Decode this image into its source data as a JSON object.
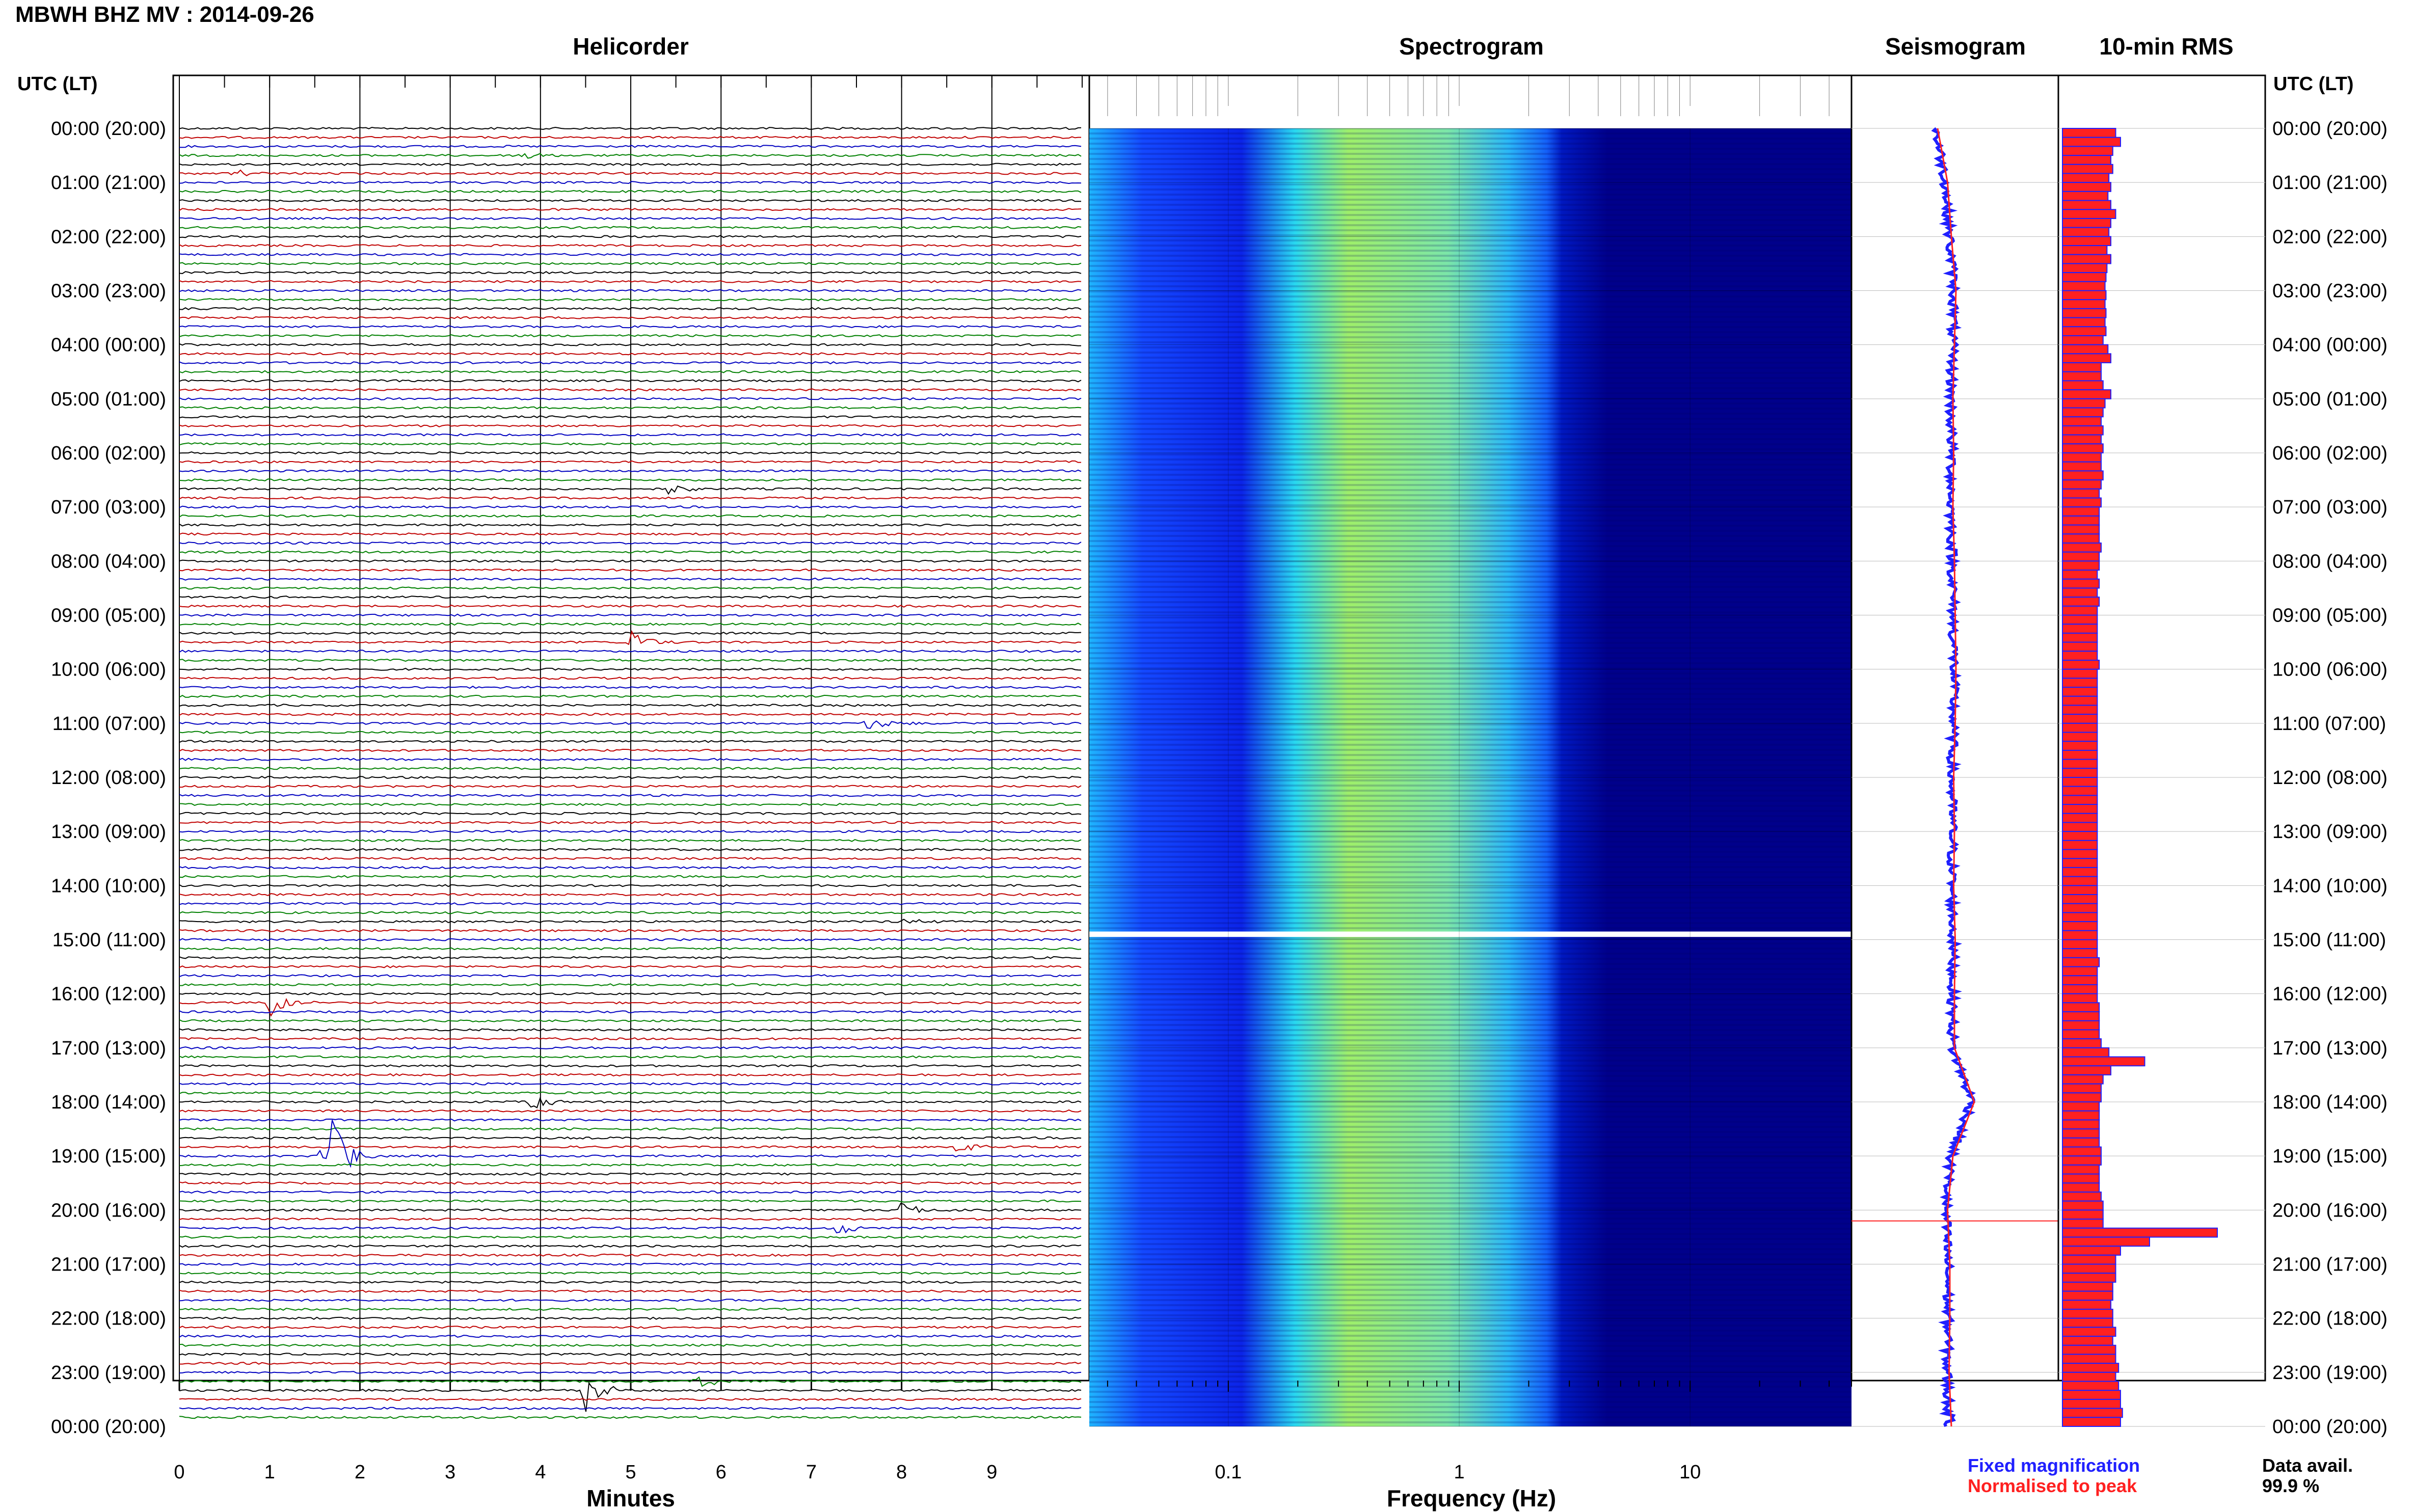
{
  "header": {
    "title": "MBWH BHZ MV : 2014-09-26",
    "utc_label_left": "UTC (LT)",
    "utc_label_right": "UTC (LT)"
  },
  "panels": {
    "helicorder": "Helicorder",
    "spectrogram": "Spectrogram",
    "seismogram": "Seismogram",
    "rms": "10-min RMS"
  },
  "time_labels": [
    "00:00 (20:00)",
    "01:00 (21:00)",
    "02:00 (22:00)",
    "03:00 (23:00)",
    "04:00 (00:00)",
    "05:00 (01:00)",
    "06:00 (02:00)",
    "07:00 (03:00)",
    "08:00 (04:00)",
    "09:00 (05:00)",
    "10:00 (06:00)",
    "11:00 (07:00)",
    "12:00 (08:00)",
    "13:00 (09:00)",
    "14:00 (10:00)",
    "15:00 (11:00)",
    "16:00 (12:00)",
    "17:00 (13:00)",
    "18:00 (14:00)",
    "19:00 (15:00)",
    "20:00 (16:00)",
    "21:00 (17:00)",
    "22:00 (18:00)",
    "23:00 (19:00)",
    "00:00 (20:00)"
  ],
  "legend": {
    "fixed": "Fixed magnification",
    "normalised": "Normalised to peak"
  },
  "availability": {
    "label": "Data avail.",
    "value": "99.9 %"
  },
  "colors": {
    "trace_cycle": [
      "#000000",
      "#c00000",
      "#0000c0",
      "#008000"
    ],
    "spectrogram_background": "#00008b",
    "seismogram_fixed": "#2020ff",
    "seismogram_normalised": "#ff2020",
    "rms_fill": "#ff2020",
    "rms_edge": "#2020ff"
  },
  "chart_data": [
    {
      "type": "line",
      "name": "helicorder",
      "title": "Helicorder",
      "xlabel": "Minutes",
      "x_ticks": [
        0,
        1,
        2,
        3,
        4,
        5,
        6,
        7,
        8,
        9
      ],
      "xlim": [
        0,
        10
      ],
      "rows": 144,
      "row_minutes": 10,
      "events": [
        {
          "row": 3,
          "minute": 3.8,
          "amp": 0.3
        },
        {
          "row": 5,
          "minute": 0.6,
          "amp": 0.2
        },
        {
          "row": 40,
          "minute": 5.4,
          "amp": 0.4
        },
        {
          "row": 57,
          "minute": 5.0,
          "amp": 0.7
        },
        {
          "row": 66,
          "minute": 7.6,
          "amp": 0.5
        },
        {
          "row": 88,
          "minute": 8.0,
          "amp": 0.25
        },
        {
          "row": 97,
          "minute": 1.0,
          "amp": 0.8
        },
        {
          "row": 108,
          "minute": 3.9,
          "amp": 0.5
        },
        {
          "row": 113,
          "minute": 8.6,
          "amp": 0.5
        },
        {
          "row": 114,
          "minute": 1.6,
          "amp": 3.2
        },
        {
          "row": 120,
          "minute": 8.0,
          "amp": 0.5
        },
        {
          "row": 122,
          "minute": 7.3,
          "amp": 0.4
        },
        {
          "row": 139,
          "minute": 5.7,
          "amp": 0.6
        },
        {
          "row": 140,
          "minute": 4.5,
          "amp": 1.1
        }
      ]
    },
    {
      "type": "heatmap",
      "name": "spectrogram",
      "title": "Spectrogram",
      "xlabel": "Frequency (Hz)",
      "x_scale": "log",
      "xlim": [
        0.025,
        50
      ],
      "x_ticks": [
        0.1,
        1,
        10
      ],
      "gap_hours": [
        14.85,
        14.95
      ]
    },
    {
      "type": "line",
      "name": "seismogram",
      "title": "Seismogram",
      "hours": [
        0,
        1,
        2,
        3,
        4,
        5,
        6,
        7,
        8,
        9,
        10,
        11,
        12,
        13,
        14,
        15,
        16,
        17,
        18,
        19,
        20,
        21,
        22,
        23,
        24
      ],
      "offset": [
        -0.18,
        -0.05,
        0,
        0.06,
        0.04,
        0.02,
        0.03,
        0.02,
        0.04,
        0.05,
        0.06,
        0.05,
        0.03,
        0.04,
        0.03,
        0.05,
        0.04,
        0.04,
        0.3,
        0.02,
        -0.05,
        -0.02,
        -0.02,
        -0.03,
        0.0
      ]
    },
    {
      "type": "bar",
      "name": "rms",
      "title": "10-min RMS",
      "values": [
        0.55,
        0.6,
        0.52,
        0.5,
        0.52,
        0.48,
        0.5,
        0.47,
        0.5,
        0.55,
        0.5,
        0.48,
        0.5,
        0.46,
        0.5,
        0.46,
        0.45,
        0.44,
        0.45,
        0.44,
        0.45,
        0.44,
        0.45,
        0.42,
        0.47,
        0.5,
        0.4,
        0.4,
        0.42,
        0.5,
        0.44,
        0.42,
        0.4,
        0.42,
        0.4,
        0.42,
        0.4,
        0.4,
        0.42,
        0.4,
        0.38,
        0.4,
        0.38,
        0.38,
        0.38,
        0.38,
        0.4,
        0.38,
        0.38,
        0.36,
        0.38,
        0.36,
        0.38,
        0.36,
        0.36,
        0.36,
        0.36,
        0.36,
        0.36,
        0.38,
        0.36,
        0.36,
        0.36,
        0.36,
        0.36,
        0.36,
        0.36,
        0.36,
        0.36,
        0.36,
        0.36,
        0.36,
        0.36,
        0.36,
        0.36,
        0.36,
        0.36,
        0.36,
        0.36,
        0.36,
        0.36,
        0.36,
        0.36,
        0.36,
        0.36,
        0.36,
        0.36,
        0.36,
        0.36,
        0.36,
        0.36,
        0.36,
        0.38,
        0.36,
        0.36,
        0.36,
        0.36,
        0.38,
        0.38,
        0.38,
        0.38,
        0.4,
        0.48,
        0.85,
        0.5,
        0.42,
        0.4,
        0.4,
        0.38,
        0.38,
        0.38,
        0.38,
        0.38,
        0.4,
        0.4,
        0.38,
        0.38,
        0.38,
        0.4,
        0.42,
        0.42,
        0.42,
        1.6,
        0.9,
        0.6,
        0.55,
        0.55,
        0.55,
        0.52,
        0.52,
        0.5,
        0.52,
        0.52,
        0.55,
        0.52,
        0.55,
        0.55,
        0.58,
        0.55,
        0.58,
        0.6,
        0.6,
        0.62,
        0.6
      ],
      "highlight_hour": 20.2
    }
  ]
}
